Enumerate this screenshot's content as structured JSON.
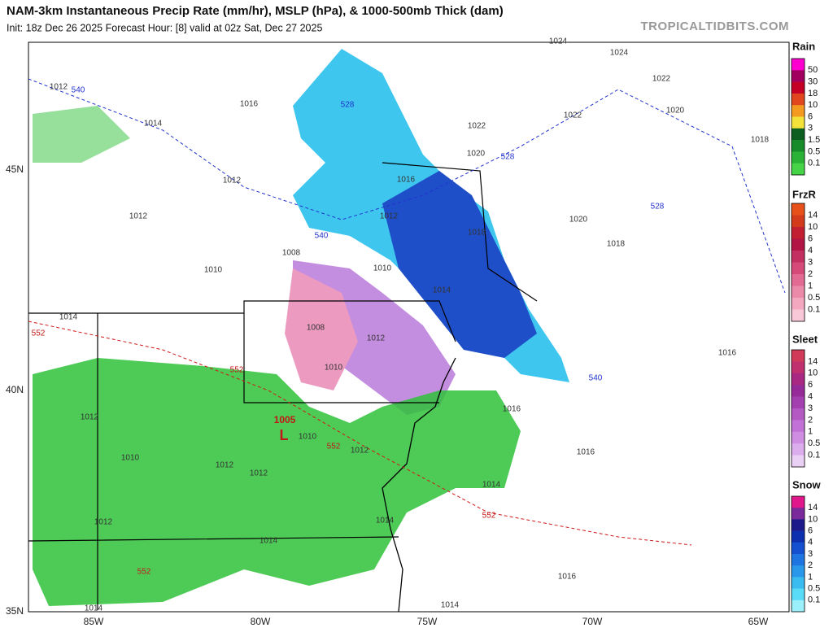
{
  "header": {
    "title": "NAM-3km Instantaneous Precip Rate (mm/hr), MSLP (hPa), & 1000-500mb Thick (dam)",
    "subtitle": "Init: 18z Dec 26 2025   Forecast Hour: [8]   valid at 02z Sat, Dec 27 2025",
    "brand": "TROPICALTIDBITS.COM"
  },
  "map": {
    "lat_labels": [
      "45N",
      "40N",
      "35N"
    ],
    "lon_labels": [
      "85W",
      "80W",
      "75W",
      "70W",
      "65W"
    ],
    "low": {
      "pressure": "1005",
      "symbol": "L"
    },
    "isobar_labels": [
      "1012",
      "1016",
      "1014",
      "1012",
      "1012",
      "1010",
      "1008",
      "1014",
      "1012",
      "1016",
      "1022",
      "1020",
      "1018",
      "1014",
      "1010",
      "1024",
      "1024",
      "1022",
      "1020",
      "1022",
      "1018",
      "1020",
      "1018",
      "1016",
      "1016",
      "1016",
      "1014",
      "1012",
      "1012",
      "1012",
      "1010",
      "1012",
      "1014",
      "1014",
      "1016",
      "1014",
      "1014",
      "1010",
      "1008",
      "1010",
      "1012",
      "1012"
    ],
    "thickness_blue_labels": [
      "540",
      "528",
      "528",
      "540",
      "528",
      "540"
    ],
    "thickness_red_labels": [
      "552",
      "552",
      "552",
      "552",
      "552"
    ]
  },
  "legends": [
    {
      "title": "Rain",
      "levels": [
        "50",
        "30",
        "18",
        "10",
        "6",
        "3",
        "1.5",
        "0.5",
        "0.1"
      ],
      "colors": [
        "#ff00d0",
        "#a1005e",
        "#c40027",
        "#e2461e",
        "#f49a20",
        "#f2e23a",
        "#0b5e1f",
        "#178a2a",
        "#2ab236",
        "#45d448"
      ]
    },
    {
      "title": "FrzR",
      "levels": [
        "14",
        "10",
        "6",
        "4",
        "3",
        "2",
        "1",
        "0.5",
        "0.1"
      ],
      "colors": [
        "#e8501a",
        "#d43a1c",
        "#c21f33",
        "#b21545",
        "#c22f60",
        "#d64a7a",
        "#e36a93",
        "#ec8aaa",
        "#f3a8c0",
        "#f9c8d8"
      ]
    },
    {
      "title": "Sleet",
      "levels": [
        "14",
        "10",
        "6",
        "4",
        "3",
        "2",
        "1",
        "0.5",
        "0.1"
      ],
      "colors": [
        "#d23a5a",
        "#c0306e",
        "#a92882",
        "#952a98",
        "#a43fb0",
        "#b458c4",
        "#c271d6",
        "#d08ee2",
        "#dcaded",
        "#ebd0f5"
      ]
    },
    {
      "title": "Snow",
      "levels": [
        "14",
        "10",
        "6",
        "4",
        "3",
        "2",
        "1",
        "0.5",
        "0.1"
      ],
      "colors": [
        "#e0178a",
        "#7a2a9a",
        "#1c1a8a",
        "#0c2fb0",
        "#1450d0",
        "#1e74e0",
        "#2a98ea",
        "#3bbcf0",
        "#59dcf7",
        "#9af1fb"
      ]
    }
  ]
}
